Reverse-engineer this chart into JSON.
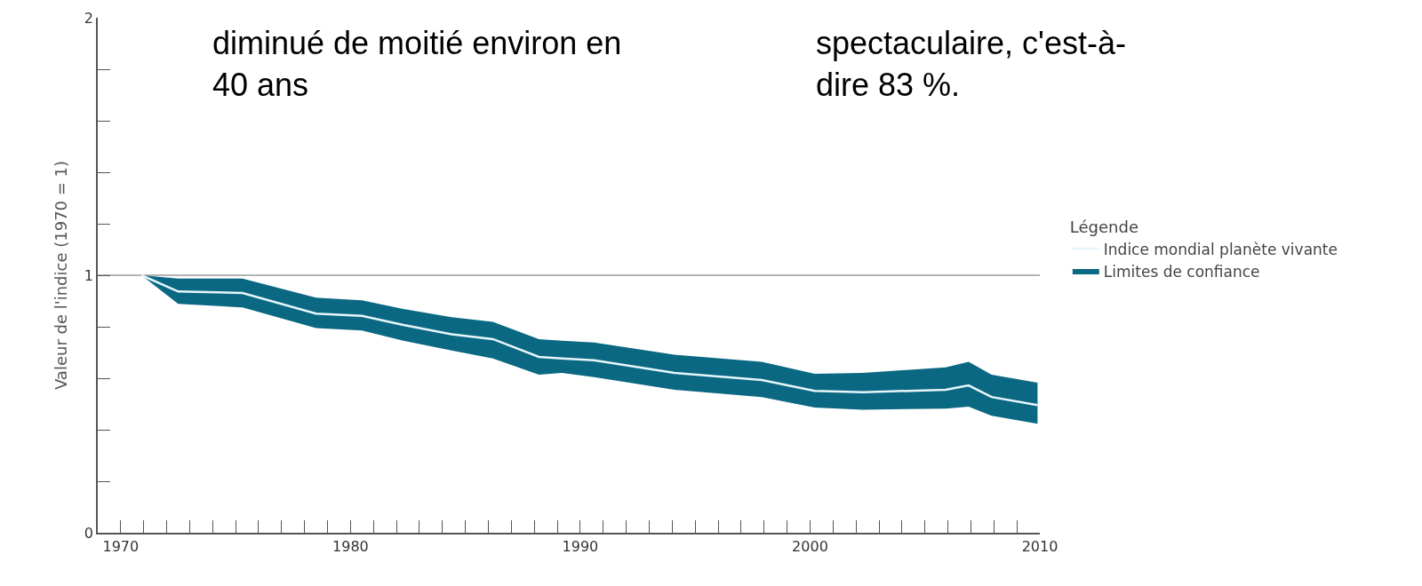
{
  "chart_data": {
    "type": "line",
    "ylabel": "Valeur de l'indice (1970 = 1)",
    "legend_title": "Légende",
    "annotations": [
      "diminué de moitié environ en\n40 ans",
      "spectaculaire, c'est-à-\ndire 83 %.",
      "Limites de confiance"
    ],
    "x": [
      1970.9,
      1972.5,
      1975.3,
      1978.5,
      1980.5,
      1982.3,
      1984.4,
      1986.2,
      1988.2,
      1989.2,
      1990.6,
      1994.1,
      1997.9,
      2000.2,
      2002.3,
      2005.9,
      2006.9,
      2007.9,
      2009.9
    ],
    "series": [
      {
        "name": "Indice mondial planète vivante",
        "color": "#e6f6fb",
        "values": [
          1,
          0.937,
          0.931,
          0.851,
          0.842,
          0.807,
          0.771,
          0.752,
          0.683,
          0.677,
          0.67,
          0.621,
          0.593,
          0.551,
          0.546,
          0.555,
          0.572,
          0.527,
          0.496
        ],
        "upper": [
          1,
          0.987,
          0.987,
          0.913,
          0.903,
          0.869,
          0.837,
          0.819,
          0.752,
          0.746,
          0.739,
          0.691,
          0.664,
          0.617,
          0.621,
          0.642,
          0.664,
          0.614,
          0.583
        ],
        "lower": [
          1,
          0.889,
          0.875,
          0.795,
          0.785,
          0.746,
          0.708,
          0.677,
          0.614,
          0.621,
          0.604,
          0.555,
          0.527,
          0.486,
          0.478,
          0.482,
          0.49,
          0.454,
          0.423
        ]
      }
    ],
    "ref_lines": [
      {
        "axis": "y",
        "value": 1,
        "color": "#9a9a9a"
      }
    ],
    "xlim": [
      1969,
      2010
    ],
    "ylim": [
      0,
      2
    ],
    "xticks": [
      1970,
      {
        "value": 1971,
        "label": null
      },
      {
        "value": 1972,
        "label": null
      },
      {
        "value": 1973,
        "label": null
      },
      {
        "value": 1974,
        "label": null
      },
      {
        "value": 1975,
        "label": null
      },
      {
        "value": 1976,
        "label": null
      },
      {
        "value": 1977,
        "label": null
      },
      {
        "value": 1978,
        "label": null
      },
      {
        "value": 1979,
        "label": null
      },
      1980,
      {
        "value": 1981,
        "label": null
      },
      {
        "value": 1982,
        "label": null
      },
      {
        "value": 1983,
        "label": null
      },
      {
        "value": 1984,
        "label": null
      },
      {
        "value": 1985,
        "label": null
      },
      {
        "value": 1986,
        "label": null
      },
      {
        "value": 1987,
        "label": null
      },
      {
        "value": 1988,
        "label": null
      },
      {
        "value": 1989,
        "label": null
      },
      1990,
      {
        "value": 1991,
        "label": null
      },
      {
        "value": 1992,
        "label": null
      },
      {
        "value": 1993,
        "label": null
      },
      {
        "value": 1994,
        "label": null
      },
      {
        "value": 1995,
        "label": null
      },
      {
        "value": 1996,
        "label": null
      },
      {
        "value": 1997,
        "label": null
      },
      {
        "value": 1998,
        "label": null
      },
      {
        "value": 1999,
        "label": null
      },
      2000,
      {
        "value": 2001,
        "label": null
      },
      {
        "value": 2002,
        "label": null
      },
      {
        "value": 2003,
        "label": null
      },
      {
        "value": 2004,
        "label": null
      },
      {
        "value": 2005,
        "label": null
      },
      {
        "value": 2006,
        "label": null
      },
      {
        "value": 2007,
        "label": null
      },
      {
        "value": 2008,
        "label": null
      },
      {
        "value": 2009,
        "label": null
      },
      2010
    ],
    "yticks": [
      0,
      {
        "value": 0.2,
        "label": null
      },
      {
        "value": 0.4,
        "label": null
      },
      {
        "value": 0.6,
        "label": null
      },
      {
        "value": 0.8,
        "label": null
      },
      1,
      {
        "value": 1.2,
        "label": null
      },
      {
        "value": 1.4,
        "label": null
      },
      {
        "value": 1.6,
        "label": null
      },
      {
        "value": 1.8,
        "label": null
      },
      2
    ],
    "grid": false,
    "legend": "right",
    "marker": "none",
    "line_style": "solid"
  }
}
